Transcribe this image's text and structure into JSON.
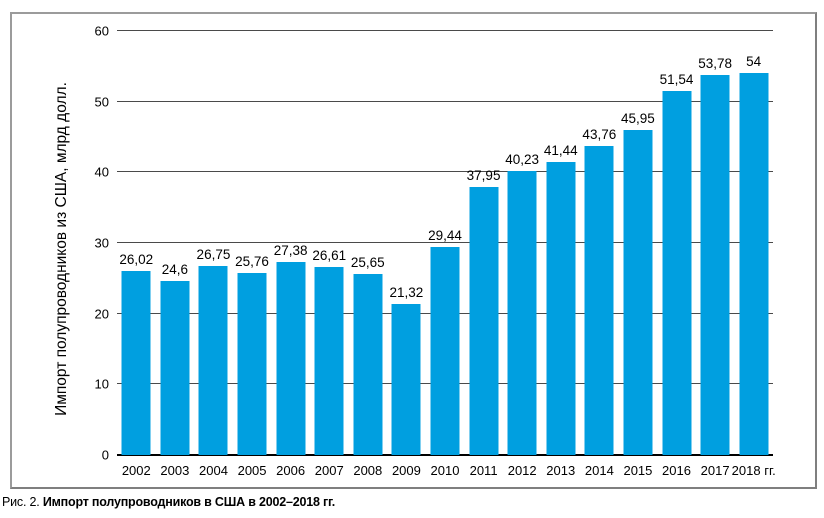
{
  "figure": {
    "caption_prefix": "Рис. 2.",
    "caption_text": "Импорт полупроводников в США в 2002–2018 гг."
  },
  "chart_data": {
    "type": "bar",
    "title": "",
    "xlabel": "",
    "ylabel": "Импорт полупроводников из США, млрд долл.",
    "categories": [
      "2002",
      "2003",
      "2004",
      "2005",
      "2006",
      "2007",
      "2008",
      "2009",
      "2010",
      "2011",
      "2012",
      "2013",
      "2014",
      "2015",
      "2016",
      "2017",
      "2018 гг."
    ],
    "values": [
      26.02,
      24.6,
      26.75,
      25.76,
      27.38,
      26.61,
      25.65,
      21.32,
      29.44,
      37.95,
      40.23,
      41.44,
      43.76,
      45.95,
      51.54,
      53.78,
      54
    ],
    "value_labels": [
      "26,02",
      "24,6",
      "26,75",
      "25,76",
      "27,38",
      "26,61",
      "25,65",
      "21,32",
      "29,44",
      "37,95",
      "40,23",
      "41,44",
      "43,76",
      "45,95",
      "51,54",
      "53,78",
      "54"
    ],
    "ylim": [
      0,
      60
    ],
    "yticks": [
      0,
      10,
      20,
      30,
      40,
      50,
      60
    ],
    "grid": "horizontal",
    "legend": "none",
    "bar_color": "#009fe0",
    "gridline_color": "#4a4a4a",
    "baseline_color": "#000000"
  }
}
